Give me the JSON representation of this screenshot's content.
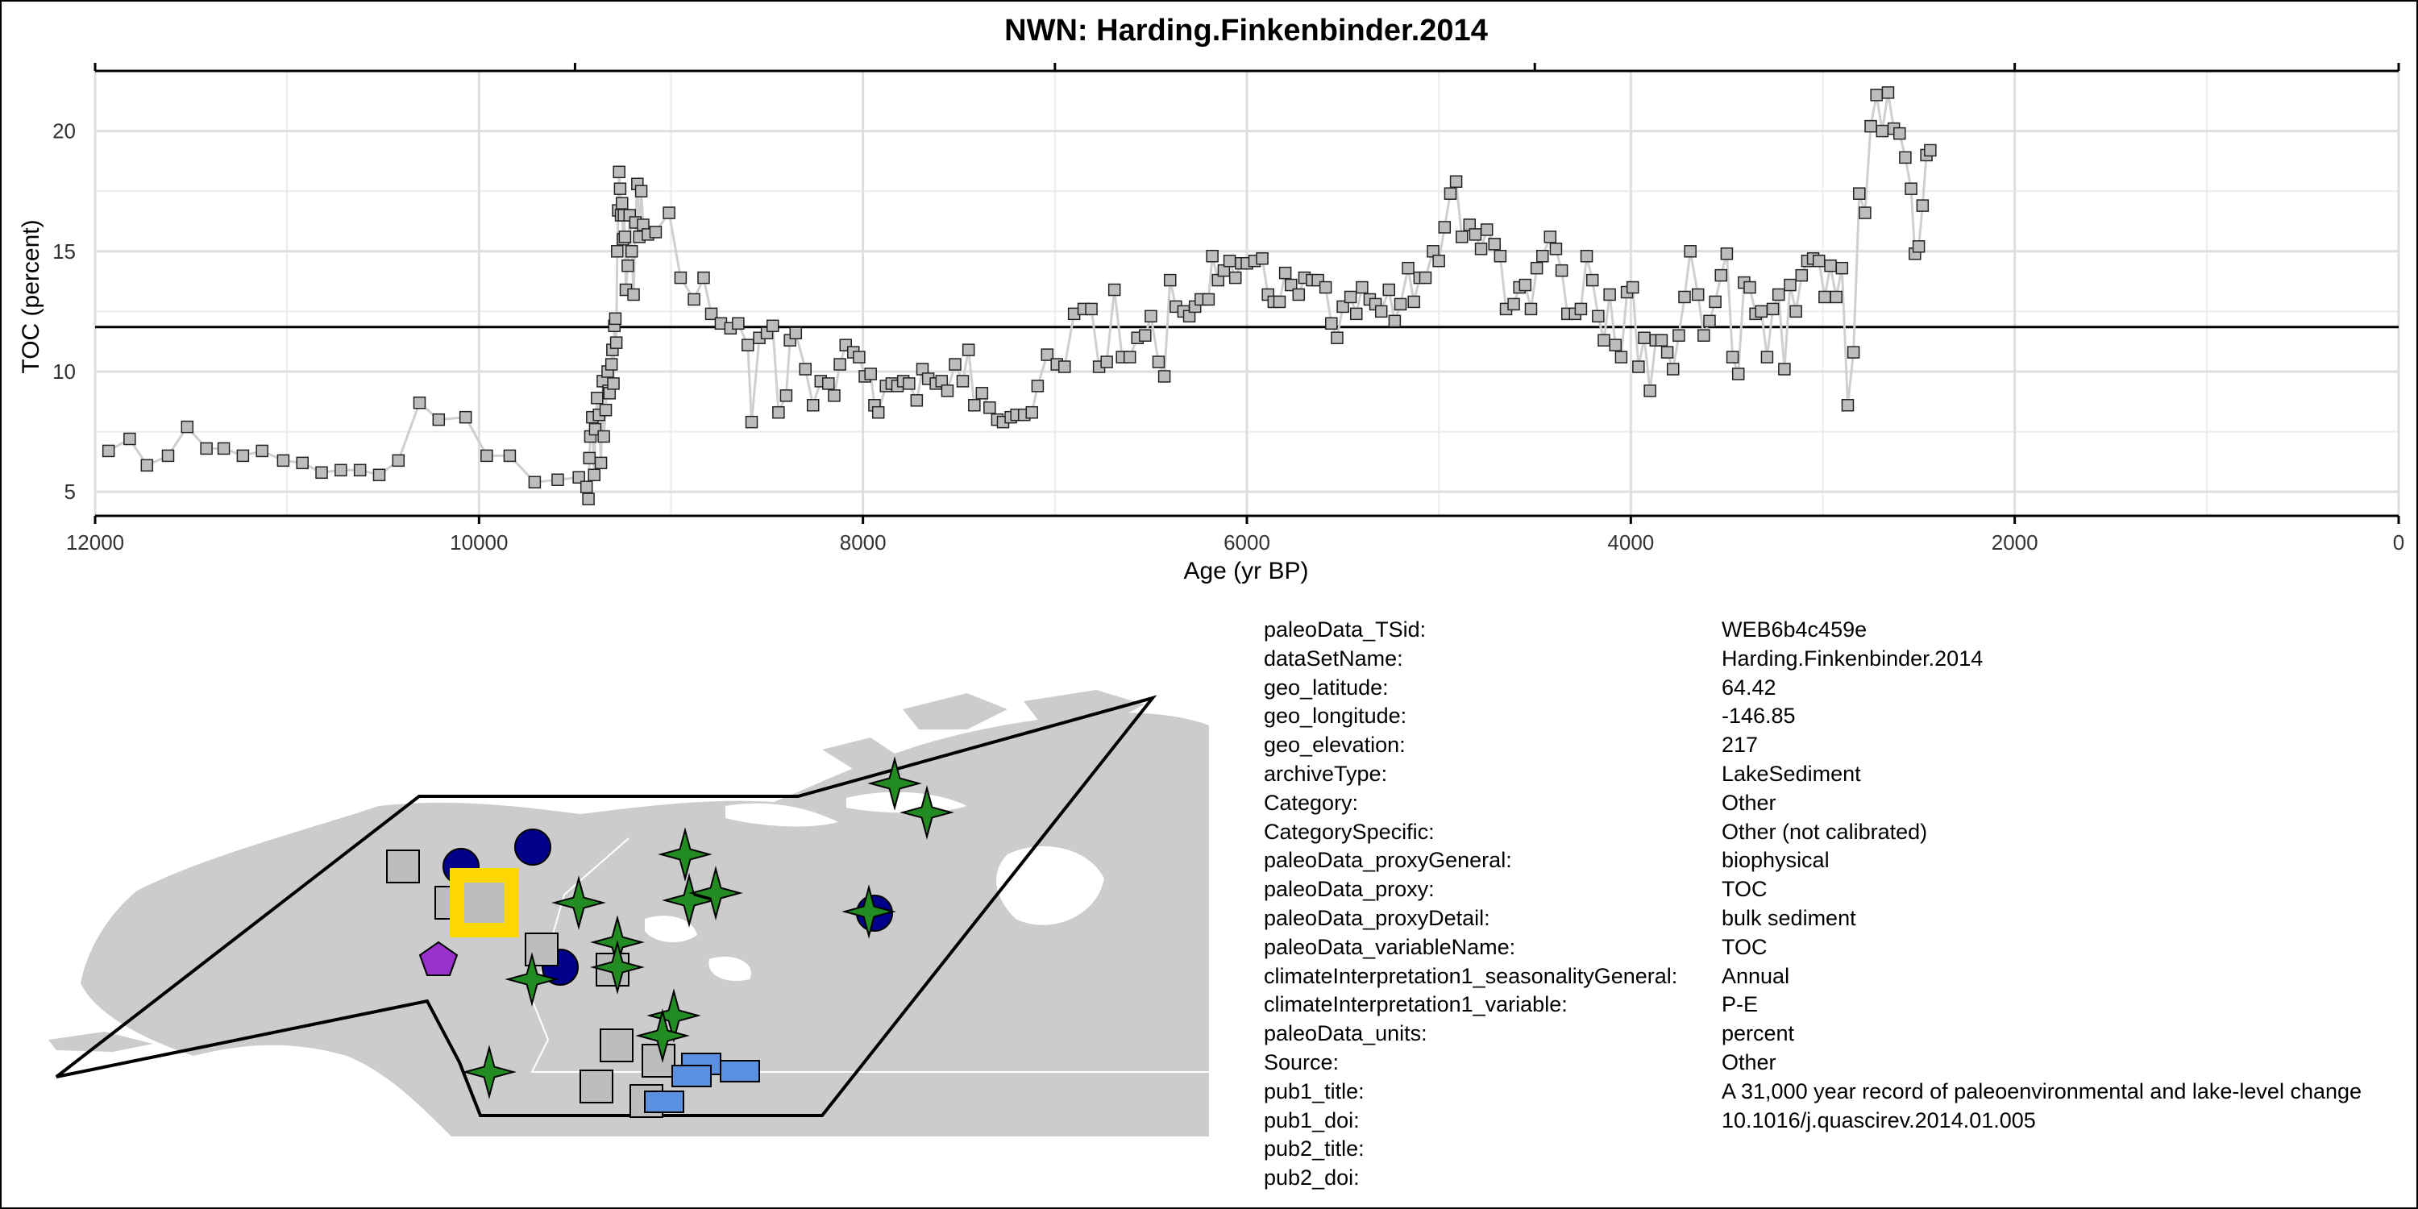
{
  "chart_data": {
    "type": "scatter",
    "title": "NWN: Harding.Finkenbinder.2014",
    "xlabel": "Age (yr BP)",
    "ylabel": "TOC (percent)",
    "xlim": [
      12000,
      0
    ],
    "ylim": [
      4,
      22.5
    ],
    "x_reversed": true,
    "grid": true,
    "x_ticks": [
      12000,
      10000,
      8000,
      6000,
      4000,
      2000,
      0
    ],
    "x_tick_labels": [
      "12000",
      "10000",
      "8000",
      "6000",
      "4000",
      "2000",
      "0"
    ],
    "y_ticks": [
      5,
      10,
      15,
      20
    ],
    "y_tick_labels": [
      "5",
      "10",
      "15",
      "20"
    ],
    "mean_line": 11.85,
    "series": [
      {
        "marker": "square",
        "marker_color": "#bdbdbd",
        "line_color": "#cfcfcf",
        "points": [
          [
            11930,
            6.7
          ],
          [
            11820,
            7.2
          ],
          [
            11730,
            6.1
          ],
          [
            11620,
            6.5
          ],
          [
            11520,
            7.7
          ],
          [
            11420,
            6.8
          ],
          [
            11330,
            6.8
          ],
          [
            11230,
            6.5
          ],
          [
            11130,
            6.7
          ],
          [
            11020,
            6.3
          ],
          [
            10920,
            6.2
          ],
          [
            10820,
            5.8
          ],
          [
            10720,
            5.9
          ],
          [
            10620,
            5.9
          ],
          [
            10520,
            5.7
          ],
          [
            10420,
            6.3
          ],
          [
            10310,
            8.7
          ],
          [
            10210,
            8.0
          ],
          [
            10070,
            8.1
          ],
          [
            9960,
            6.5
          ],
          [
            9840,
            6.5
          ],
          [
            9710,
            5.4
          ],
          [
            9590,
            5.5
          ],
          [
            9480,
            5.6
          ],
          [
            9440,
            5.2
          ],
          [
            9430,
            4.7
          ],
          [
            9425,
            6.4
          ],
          [
            9420,
            7.3
          ],
          [
            9410,
            8.1
          ],
          [
            9400,
            5.7
          ],
          [
            9395,
            7.6
          ],
          [
            9385,
            8.9
          ],
          [
            9375,
            8.2
          ],
          [
            9365,
            6.2
          ],
          [
            9355,
            9.6
          ],
          [
            9350,
            7.3
          ],
          [
            9340,
            8.4
          ],
          [
            9330,
            10.0
          ],
          [
            9325,
            9.2
          ],
          [
            9320,
            9.1
          ],
          [
            9310,
            10.3
          ],
          [
            9305,
            10.9
          ],
          [
            9300,
            9.5
          ],
          [
            9295,
            11.9
          ],
          [
            9290,
            12.2
          ],
          [
            9285,
            11.2
          ],
          [
            9280,
            15.0
          ],
          [
            9275,
            16.7
          ],
          [
            9270,
            18.3
          ],
          [
            9265,
            17.6
          ],
          [
            9260,
            16.5
          ],
          [
            9255,
            17.0
          ],
          [
            9250,
            15.5
          ],
          [
            9245,
            16.5
          ],
          [
            9240,
            15.6
          ],
          [
            9235,
            13.4
          ],
          [
            9225,
            14.4
          ],
          [
            9215,
            16.5
          ],
          [
            9205,
            15.0
          ],
          [
            9195,
            13.2
          ],
          [
            9185,
            16.2
          ],
          [
            9175,
            17.8
          ],
          [
            9165,
            15.6
          ],
          [
            9155,
            17.5
          ],
          [
            9145,
            16.1
          ],
          [
            9120,
            15.7
          ],
          [
            9080,
            15.8
          ],
          [
            9010,
            16.6
          ],
          [
            8950,
            13.9
          ],
          [
            8880,
            13.0
          ],
          [
            8830,
            13.9
          ],
          [
            8790,
            12.4
          ],
          [
            8740,
            12.0
          ],
          [
            8690,
            11.8
          ],
          [
            8650,
            12.0
          ],
          [
            8600,
            11.1
          ],
          [
            8580,
            7.9
          ],
          [
            8540,
            11.4
          ],
          [
            8500,
            11.6
          ],
          [
            8470,
            11.9
          ],
          [
            8440,
            8.3
          ],
          [
            8400,
            9.0
          ],
          [
            8380,
            11.3
          ],
          [
            8350,
            11.6
          ],
          [
            8300,
            10.1
          ],
          [
            8260,
            8.6
          ],
          [
            8220,
            9.6
          ],
          [
            8180,
            9.5
          ],
          [
            8150,
            9.0
          ],
          [
            8120,
            10.3
          ],
          [
            8090,
            11.1
          ],
          [
            8050,
            10.8
          ],
          [
            8020,
            10.6
          ],
          [
            7990,
            9.8
          ],
          [
            7960,
            9.9
          ],
          [
            7940,
            8.6
          ],
          [
            7920,
            8.3
          ],
          [
            7880,
            9.4
          ],
          [
            7850,
            9.5
          ],
          [
            7820,
            9.4
          ],
          [
            7790,
            9.6
          ],
          [
            7760,
            9.5
          ],
          [
            7720,
            8.8
          ],
          [
            7690,
            10.1
          ],
          [
            7660,
            9.7
          ],
          [
            7620,
            9.5
          ],
          [
            7590,
            9.6
          ],
          [
            7560,
            9.2
          ],
          [
            7520,
            10.3
          ],
          [
            7480,
            9.6
          ],
          [
            7450,
            10.9
          ],
          [
            7420,
            8.6
          ],
          [
            7380,
            9.1
          ],
          [
            7340,
            8.5
          ],
          [
            7300,
            8.0
          ],
          [
            7270,
            7.9
          ],
          [
            7230,
            8.1
          ],
          [
            7200,
            8.2
          ],
          [
            7160,
            8.2
          ],
          [
            7120,
            8.3
          ],
          [
            7090,
            9.4
          ],
          [
            7040,
            10.7
          ],
          [
            6990,
            10.3
          ],
          [
            6950,
            10.2
          ],
          [
            6900,
            12.4
          ],
          [
            6850,
            12.6
          ],
          [
            6810,
            12.6
          ],
          [
            6770,
            10.2
          ],
          [
            6730,
            10.4
          ],
          [
            6690,
            13.4
          ],
          [
            6650,
            10.6
          ],
          [
            6610,
            10.6
          ],
          [
            6570,
            11.4
          ],
          [
            6530,
            11.5
          ],
          [
            6500,
            12.3
          ],
          [
            6460,
            10.4
          ],
          [
            6430,
            9.8
          ],
          [
            6400,
            13.8
          ],
          [
            6370,
            12.7
          ],
          [
            6330,
            12.5
          ],
          [
            6300,
            12.3
          ],
          [
            6270,
            12.7
          ],
          [
            6240,
            13.0
          ],
          [
            6200,
            13.0
          ],
          [
            6180,
            14.8
          ],
          [
            6150,
            13.8
          ],
          [
            6120,
            14.2
          ],
          [
            6090,
            14.6
          ],
          [
            6060,
            13.9
          ],
          [
            6030,
            14.5
          ],
          [
            6000,
            14.5
          ],
          [
            5960,
            14.6
          ],
          [
            5920,
            14.7
          ],
          [
            5890,
            13.2
          ],
          [
            5860,
            12.9
          ],
          [
            5830,
            12.9
          ],
          [
            5800,
            14.1
          ],
          [
            5770,
            13.6
          ],
          [
            5730,
            13.2
          ],
          [
            5700,
            13.9
          ],
          [
            5660,
            13.8
          ],
          [
            5630,
            13.8
          ],
          [
            5590,
            13.5
          ],
          [
            5560,
            12.0
          ],
          [
            5530,
            11.4
          ],
          [
            5500,
            12.7
          ],
          [
            5460,
            13.1
          ],
          [
            5430,
            12.4
          ],
          [
            5400,
            13.5
          ],
          [
            5360,
            13.0
          ],
          [
            5330,
            12.8
          ],
          [
            5300,
            12.5
          ],
          [
            5260,
            13.4
          ],
          [
            5230,
            12.1
          ],
          [
            5200,
            12.8
          ],
          [
            5160,
            14.3
          ],
          [
            5130,
            12.9
          ],
          [
            5100,
            13.9
          ],
          [
            5070,
            13.9
          ],
          [
            5030,
            15.0
          ],
          [
            5000,
            14.6
          ],
          [
            4970,
            16.0
          ],
          [
            4940,
            17.4
          ],
          [
            4910,
            17.9
          ],
          [
            4880,
            15.6
          ],
          [
            4840,
            16.1
          ],
          [
            4810,
            15.7
          ],
          [
            4780,
            15.1
          ],
          [
            4750,
            15.9
          ],
          [
            4710,
            15.3
          ],
          [
            4680,
            14.8
          ],
          [
            4650,
            12.6
          ],
          [
            4610,
            12.8
          ],
          [
            4580,
            13.5
          ],
          [
            4550,
            13.6
          ],
          [
            4520,
            12.6
          ],
          [
            4490,
            14.3
          ],
          [
            4460,
            14.8
          ],
          [
            4420,
            15.6
          ],
          [
            4390,
            15.1
          ],
          [
            4360,
            14.2
          ],
          [
            4330,
            12.4
          ],
          [
            4290,
            12.4
          ],
          [
            4260,
            12.6
          ],
          [
            4230,
            14.8
          ],
          [
            4200,
            13.8
          ],
          [
            4170,
            12.3
          ],
          [
            4140,
            11.3
          ],
          [
            4110,
            13.2
          ],
          [
            4080,
            11.1
          ],
          [
            4050,
            10.6
          ],
          [
            4020,
            13.3
          ],
          [
            3990,
            13.5
          ],
          [
            3960,
            10.2
          ],
          [
            3930,
            11.4
          ],
          [
            3900,
            9.2
          ],
          [
            3870,
            11.3
          ],
          [
            3840,
            11.3
          ],
          [
            3810,
            10.8
          ],
          [
            3780,
            10.1
          ],
          [
            3750,
            11.5
          ],
          [
            3720,
            13.1
          ],
          [
            3690,
            15.0
          ],
          [
            3650,
            13.2
          ],
          [
            3620,
            11.5
          ],
          [
            3590,
            12.1
          ],
          [
            3560,
            12.9
          ],
          [
            3530,
            14.0
          ],
          [
            3500,
            14.9
          ],
          [
            3470,
            10.6
          ],
          [
            3440,
            9.9
          ],
          [
            3410,
            13.7
          ],
          [
            3380,
            13.5
          ],
          [
            3350,
            12.4
          ],
          [
            3320,
            12.5
          ],
          [
            3290,
            10.6
          ],
          [
            3260,
            12.6
          ],
          [
            3230,
            13.2
          ],
          [
            3200,
            10.1
          ],
          [
            3170,
            13.6
          ],
          [
            3140,
            12.5
          ],
          [
            3110,
            14.0
          ],
          [
            3080,
            14.6
          ],
          [
            3050,
            14.7
          ],
          [
            3020,
            14.6
          ],
          [
            2990,
            13.1
          ],
          [
            2960,
            14.4
          ],
          [
            2930,
            13.1
          ],
          [
            2900,
            14.3
          ],
          [
            2870,
            8.6
          ],
          [
            2840,
            10.8
          ],
          [
            2810,
            17.4
          ],
          [
            2780,
            16.6
          ],
          [
            2750,
            20.2
          ],
          [
            2720,
            21.5
          ],
          [
            2690,
            20.0
          ],
          [
            2660,
            21.6
          ],
          [
            2630,
            20.1
          ],
          [
            2600,
            19.9
          ],
          [
            2570,
            18.9
          ],
          [
            2540,
            17.6
          ],
          [
            2520,
            14.9
          ],
          [
            2500,
            15.2
          ],
          [
            2480,
            16.9
          ],
          [
            2460,
            19.0
          ],
          [
            2440,
            19.2
          ]
        ]
      }
    ]
  },
  "map": {
    "land_color": "#cccccc",
    "region_outline_color": "#000000",
    "highlight_color": "#ffd700",
    "symbol_colors": {
      "circle": "#00008b",
      "star": "#228b22",
      "square": "#bdbdbd",
      "rect": "#5b8fe0",
      "pentagon": "#9932cc"
    }
  },
  "metadata": [
    {
      "key": "paleoData_TSid:",
      "value": "WEB6b4c459e"
    },
    {
      "key": "dataSetName:",
      "value": "Harding.Finkenbinder.2014"
    },
    {
      "key": "geo_latitude:",
      "value": "64.42"
    },
    {
      "key": "geo_longitude:",
      "value": "-146.85"
    },
    {
      "key": "geo_elevation:",
      "value": "217"
    },
    {
      "key": "archiveType:",
      "value": "LakeSediment"
    },
    {
      "key": "Category:",
      "value": "Other"
    },
    {
      "key": "CategorySpecific:",
      "value": "Other (not calibrated)"
    },
    {
      "key": "paleoData_proxyGeneral:",
      "value": "biophysical"
    },
    {
      "key": "paleoData_proxy:",
      "value": "TOC"
    },
    {
      "key": "paleoData_proxyDetail:",
      "value": "bulk sediment"
    },
    {
      "key": "paleoData_variableName:",
      "value": "TOC"
    },
    {
      "key": "climateInterpretation1_seasonalityGeneral:",
      "value": "Annual"
    },
    {
      "key": "climateInterpretation1_variable:",
      "value": "P-E"
    },
    {
      "key": "paleoData_units:",
      "value": "percent"
    },
    {
      "key": "Source:",
      "value": "Other"
    },
    {
      "key": "pub1_title:",
      "value": "A 31,000 year record of paleoenvironmental and lake-level change"
    },
    {
      "key": "pub1_doi:",
      "value": "10.1016/j.quascirev.2014.01.005"
    },
    {
      "key": "pub2_title:",
      "value": ""
    },
    {
      "key": "pub2_doi:",
      "value": ""
    }
  ]
}
